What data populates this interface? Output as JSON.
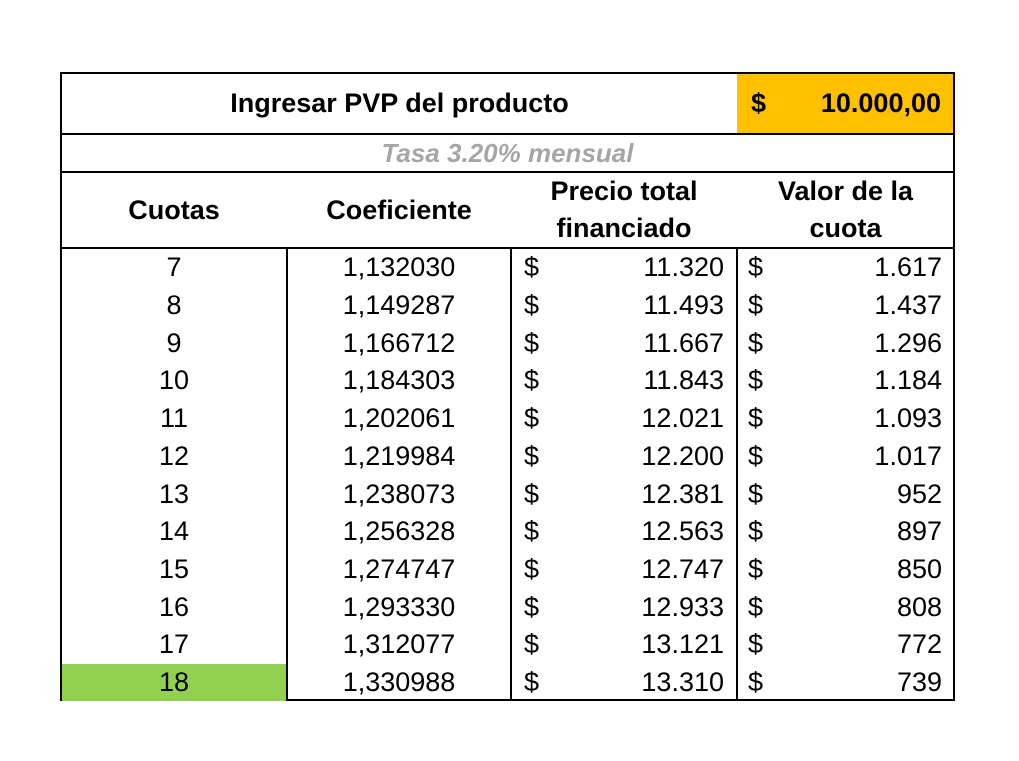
{
  "header": {
    "title": "Ingresar PVP del producto",
    "currency": "$",
    "price": "10.000,00",
    "price_bg": "#ffc000"
  },
  "rate_note": "Tasa 3.20% mensual",
  "columns": {
    "cuotas": "Cuotas",
    "coeficiente": "Coeficiente",
    "precio_total": "Precio total financiado",
    "valor_cuota": "Valor de la cuota"
  },
  "rows": [
    {
      "cuotas": "7",
      "coef": "1,132030",
      "cur1": "$",
      "total": "11.320",
      "cur2": "$",
      "cuota": "1.617"
    },
    {
      "cuotas": "8",
      "coef": "1,149287",
      "cur1": "$",
      "total": "11.493",
      "cur2": "$",
      "cuota": "1.437"
    },
    {
      "cuotas": "9",
      "coef": "1,166712",
      "cur1": "$",
      "total": "11.667",
      "cur2": "$",
      "cuota": "1.296"
    },
    {
      "cuotas": "10",
      "coef": "1,184303",
      "cur1": "$",
      "total": "11.843",
      "cur2": "$",
      "cuota": "1.184"
    },
    {
      "cuotas": "11",
      "coef": "1,202061",
      "cur1": "$",
      "total": "12.021",
      "cur2": "$",
      "cuota": "1.093"
    },
    {
      "cuotas": "12",
      "coef": "1,219984",
      "cur1": "$",
      "total": "12.200",
      "cur2": "$",
      "cuota": "1.017"
    },
    {
      "cuotas": "13",
      "coef": "1,238073",
      "cur1": "$",
      "total": "12.381",
      "cur2": "$",
      "cuota": "952"
    },
    {
      "cuotas": "14",
      "coef": "1,256328",
      "cur1": "$",
      "total": "12.563",
      "cur2": "$",
      "cuota": "897"
    },
    {
      "cuotas": "15",
      "coef": "1,274747",
      "cur1": "$",
      "total": "12.747",
      "cur2": "$",
      "cuota": "850"
    },
    {
      "cuotas": "16",
      "coef": "1,293330",
      "cur1": "$",
      "total": "12.933",
      "cur2": "$",
      "cuota": "808"
    },
    {
      "cuotas": "17",
      "coef": "1,312077",
      "cur1": "$",
      "total": "13.121",
      "cur2": "$",
      "cuota": "772"
    },
    {
      "cuotas": "18",
      "coef": "1,330988",
      "cur1": "$",
      "total": "13.310",
      "cur2": "$",
      "cuota": "739",
      "highlight": true
    }
  ],
  "colors": {
    "highlight": "#92d050",
    "rate_text": "#a6a6a6"
  }
}
